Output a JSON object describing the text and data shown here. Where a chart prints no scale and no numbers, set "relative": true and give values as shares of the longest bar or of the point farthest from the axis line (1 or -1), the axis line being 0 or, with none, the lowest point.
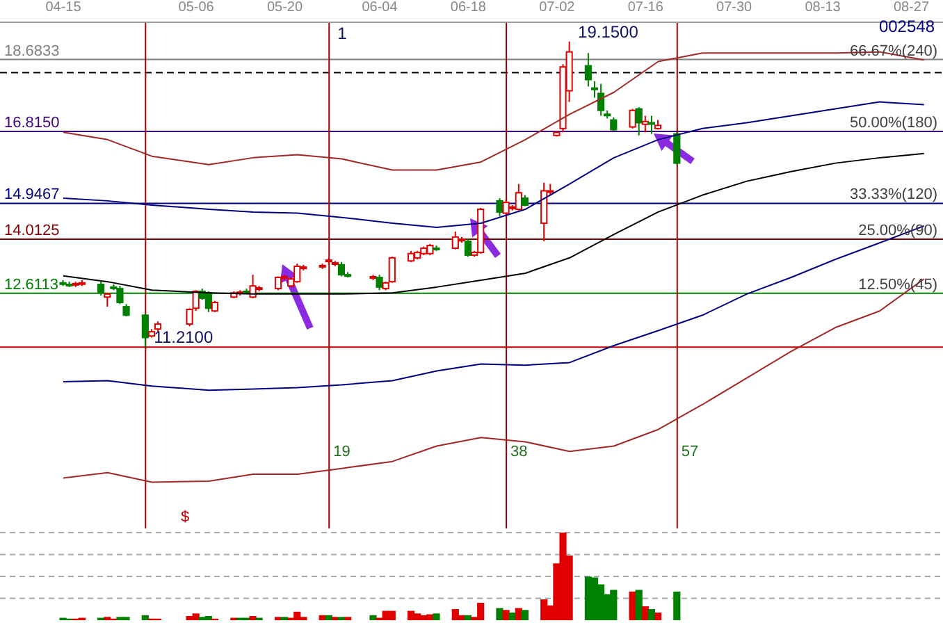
{
  "chart_data": [
    {
      "type": "candlestick",
      "title": "002548",
      "x": [
        "--04-15",
        "--04-16",
        "--04-17",
        "--04-18",
        "--04-21",
        "--04-22",
        "--04-23",
        "--04-24",
        "--04-25",
        "--04-28",
        "--04-29",
        "--04-30",
        "--05-05",
        "--05-06",
        "--05-07",
        "--05-08",
        "--05-09",
        "--05-12",
        "--05-13",
        "--05-14",
        "--05-15",
        "--05-16",
        "--05-19",
        "--05-20",
        "--05-21",
        "--05-22",
        "--05-23",
        "--05-26",
        "--05-27",
        "--05-28",
        "--05-29",
        "--05-30",
        "--06-03",
        "--06-04",
        "--06-05",
        "--06-06",
        "--06-09",
        "--06-10",
        "--06-11",
        "--06-12",
        "--06-13",
        "--06-16",
        "--06-17",
        "--06-18",
        "--06-19",
        "--06-20",
        "--06-23",
        "--06-24",
        "--06-25",
        "--06-26",
        "--06-27",
        "--06-30",
        "--07-01",
        "--07-02",
        "--07-03",
        "--07-04",
        "--07-07",
        "--07-08",
        "--07-09",
        "--07-10",
        "--07-11",
        "--07-14",
        "--07-15",
        "--07-16",
        "--07-17",
        "--07-18",
        "--07-21"
      ],
      "ohlc": [
        [
          12.88,
          12.95,
          12.8,
          12.88
        ],
        [
          12.84,
          12.91,
          12.77,
          12.84
        ],
        [
          12.84,
          12.91,
          12.77,
          12.86
        ],
        [
          12.86,
          12.95,
          12.8,
          12.88
        ],
        [
          12.84,
          12.91,
          12.55,
          12.62
        ],
        [
          12.51,
          12.62,
          12.26,
          12.59
        ],
        [
          12.77,
          12.84,
          12.69,
          12.75
        ],
        [
          12.73,
          12.8,
          12.33,
          12.37
        ],
        [
          12.26,
          12.33,
          12.01,
          12.04
        ],
        [
          12.04,
          12.08,
          11.21,
          11.46
        ],
        [
          11.5,
          11.68,
          11.46,
          11.61
        ],
        [
          11.68,
          11.88,
          11.61,
          11.81
        ],
        [
          11.81,
          12.22,
          11.75,
          12.19
        ],
        [
          12.22,
          12.69,
          12.15,
          12.66
        ],
        [
          12.66,
          12.73,
          12.44,
          12.48
        ],
        [
          12.62,
          12.66,
          12.12,
          12.22
        ],
        [
          12.15,
          12.41,
          12.12,
          12.37
        ],
        [
          12.51,
          12.66,
          12.48,
          12.62
        ],
        [
          12.62,
          12.69,
          12.55,
          12.64
        ],
        [
          12.66,
          12.73,
          12.59,
          12.64
        ],
        [
          12.51,
          13.09,
          12.48,
          12.8
        ],
        [
          12.73,
          12.8,
          12.66,
          12.75
        ],
        [
          12.73,
          13.05,
          12.69,
          13.02
        ],
        [
          13.02,
          13.09,
          12.95,
          13.04
        ],
        [
          12.8,
          13.02,
          12.77,
          12.98
        ],
        [
          12.91,
          13.38,
          12.88,
          13.31
        ],
        [
          13.27,
          13.35,
          13.2,
          13.29
        ],
        [
          13.31,
          13.38,
          13.24,
          13.33
        ],
        [
          13.45,
          13.53,
          13.38,
          13.47
        ],
        [
          13.38,
          13.45,
          13.31,
          13.4
        ],
        [
          13.35,
          13.42,
          13.05,
          13.09
        ],
        [
          13.09,
          13.16,
          13.02,
          13.07
        ],
        [
          13.02,
          13.09,
          12.95,
          13.04
        ],
        [
          13.02,
          13.09,
          12.69,
          12.77
        ],
        [
          12.73,
          12.91,
          12.69,
          12.88
        ],
        [
          12.91,
          13.56,
          12.88,
          13.53
        ],
        [
          13.45,
          13.71,
          13.42,
          13.64
        ],
        [
          13.53,
          13.71,
          13.49,
          13.67
        ],
        [
          13.64,
          13.82,
          13.6,
          13.78
        ],
        [
          13.64,
          13.89,
          13.6,
          13.85
        ],
        [
          13.78,
          13.85,
          13.71,
          13.76
        ],
        [
          13.78,
          14.21,
          13.75,
          14.07
        ],
        [
          13.99,
          14.07,
          13.92,
          14.01
        ],
        [
          13.96,
          14.03,
          13.56,
          13.6
        ],
        [
          13.6,
          13.71,
          13.56,
          13.67
        ],
        [
          13.67,
          14.83,
          13.64,
          14.79
        ],
        [
          15.01,
          15.08,
          14.61,
          14.72
        ],
        [
          14.69,
          15.05,
          14.65,
          14.97
        ],
        [
          14.83,
          14.9,
          14.76,
          14.85
        ],
        [
          14.79,
          15.45,
          14.76,
          15.22
        ],
        [
          15.08,
          15.16,
          14.87,
          14.9
        ],
        [
          14.43,
          15.48,
          13.96,
          15.27
        ],
        [
          15.25,
          15.45,
          15.16,
          15.27
        ],
        [
          16.71,
          16.82,
          16.68,
          16.79
        ],
        [
          16.89,
          18.56,
          16.79,
          18.49
        ],
        [
          17.87,
          19.15,
          17.58,
          18.88
        ],
        [
          18.52,
          18.85,
          17.98,
          18.16
        ],
        [
          17.94,
          18.12,
          17.69,
          17.92
        ],
        [
          17.8,
          18.05,
          17.22,
          17.36
        ],
        [
          17.26,
          17.36,
          17.15,
          17.24
        ],
        [
          17.11,
          17.18,
          16.82,
          16.86
        ],
        [
          16.93,
          17.4,
          16.89,
          17.36
        ],
        [
          17.4,
          17.44,
          16.71,
          17.04
        ],
        [
          17.0,
          17.22,
          16.79,
          17.07
        ],
        [
          17.04,
          17.22,
          16.75,
          17.02
        ],
        [
          16.89,
          17.11,
          16.86,
          16.97
        ],
        [
          16.75,
          16.79,
          15.95,
          15.99
        ]
      ],
      "colors": [
        "#008000",
        "#008000",
        "#e00000",
        "#e00000",
        "#008000",
        "#e00000",
        "#008000",
        "#008000",
        "#008000",
        "#008000",
        "#e00000",
        "#e00000",
        "#e00000",
        "#e00000",
        "#008000",
        "#008000",
        "#e00000",
        "#e00000",
        "#e00000",
        "#008000",
        "#e00000",
        "#e00000",
        "#e00000",
        "#e00000",
        "#e00000",
        "#e00000",
        "#e00000",
        "#e00000",
        "#e00000",
        "#e00000",
        "#008000",
        "#008000",
        "#e00000",
        "#008000",
        "#e00000",
        "#e00000",
        "#e00000",
        "#e00000",
        "#e00000",
        "#e00000",
        "#008000",
        "#e00000",
        "#e00000",
        "#008000",
        "#e00000",
        "#e00000",
        "#008000",
        "#e00000",
        "#e00000",
        "#e00000",
        "#008000",
        "#e00000",
        "#e00000",
        "#e00000",
        "#e00000",
        "#e00000",
        "#008000",
        "#008000",
        "#008000",
        "#008000",
        "#008000",
        "#e00000",
        "#008000",
        "#e00000",
        "#008000",
        "#e00000",
        "#008000"
      ],
      "series": [
        {
          "type": "line",
          "color": "#a02828",
          "x": [
            "--04-15",
            "--04-22",
            "--04-29",
            "--05-08",
            "--05-15",
            "--05-22",
            "--05-29",
            "--06-06",
            "--06-13",
            "--06-20",
            "--06-27",
            "--07-04",
            "--07-11",
            "--07-18",
            "--07-25",
            "--08-01",
            "--08-08",
            "--08-15",
            "--08-22",
            "--08-29"
          ],
          "values": [
            16.79,
            16.6,
            16.17,
            15.95,
            16.13,
            16.21,
            16.1,
            15.81,
            15.81,
            16.02,
            16.6,
            17.26,
            17.83,
            18.63,
            18.85,
            18.85,
            18.85,
            18.85,
            18.88,
            18.67
          ]
        },
        {
          "type": "line",
          "color": "#000080",
          "x": [
            "--04-15",
            "--04-22",
            "--04-29",
            "--05-08",
            "--05-15",
            "--05-22",
            "--05-29",
            "--06-06",
            "--06-13",
            "--06-20",
            "--06-27",
            "--07-04",
            "--07-11",
            "--07-18",
            "--07-25",
            "--08-01",
            "--08-08",
            "--08-15",
            "--08-22",
            "--08-29"
          ],
          "values": [
            15.08,
            15.01,
            14.9,
            14.79,
            14.72,
            14.69,
            14.58,
            14.43,
            14.32,
            14.43,
            14.79,
            15.45,
            16.13,
            16.6,
            16.89,
            17.04,
            17.22,
            17.4,
            17.58,
            17.51
          ]
        },
        {
          "type": "line",
          "color": "#000000",
          "x": [
            "--04-15",
            "--04-22",
            "--04-29",
            "--05-08",
            "--05-15",
            "--05-22",
            "--05-29",
            "--06-06",
            "--06-13",
            "--06-20",
            "--06-27",
            "--07-04",
            "--07-11",
            "--07-18",
            "--07-25",
            "--08-01",
            "--08-08",
            "--08-15",
            "--08-22",
            "--08-29"
          ],
          "values": [
            13.06,
            12.91,
            12.69,
            12.62,
            12.59,
            12.59,
            12.59,
            12.62,
            12.77,
            12.95,
            13.13,
            13.53,
            14.14,
            14.72,
            15.16,
            15.52,
            15.77,
            15.99,
            16.13,
            16.24
          ]
        },
        {
          "type": "line",
          "color": "#000080",
          "x": [
            "--04-15",
            "--04-22",
            "--04-29",
            "--05-08",
            "--05-15",
            "--05-22",
            "--05-29",
            "--06-06",
            "--06-13",
            "--06-20",
            "--06-27",
            "--07-04",
            "--07-11",
            "--07-18",
            "--07-25",
            "--08-01",
            "--08-08",
            "--08-15",
            "--08-22",
            "--08-29"
          ],
          "values": [
            10.31,
            10.34,
            10.2,
            10.09,
            10.12,
            10.16,
            10.23,
            10.34,
            10.59,
            10.77,
            10.74,
            10.81,
            11.25,
            11.64,
            12.04,
            12.59,
            13.02,
            13.49,
            13.92,
            14.36
          ]
        },
        {
          "type": "line",
          "color": "#a02828",
          "x": [
            "--04-15",
            "--04-22",
            "--04-29",
            "--05-08",
            "--05-15",
            "--05-22",
            "--05-29",
            "--06-06",
            "--06-13",
            "--06-20",
            "--06-27",
            "--07-04",
            "--07-11",
            "--07-18",
            "--07-25",
            "--08-01",
            "--08-08",
            "--08-15",
            "--08-22",
            "--08-29"
          ],
          "values": [
            7.81,
            7.95,
            7.7,
            7.73,
            7.91,
            7.91,
            8.06,
            8.24,
            8.64,
            8.86,
            8.75,
            8.5,
            8.64,
            9.07,
            9.72,
            10.41,
            11.1,
            11.72,
            12.15,
            12.98
          ]
        }
      ],
      "xlim": [
        "--04-05",
        "--09-01"
      ],
      "xticks": [
        {
          "value": "--04-15",
          "label": "04-15"
        },
        {
          "value": "--05-06",
          "label": "05-06"
        },
        {
          "value": "--05-20",
          "label": "05-20"
        },
        {
          "value": "--06-04",
          "label": "06-04"
        },
        {
          "value": "--06-18",
          "label": "06-18"
        },
        {
          "value": "--07-02",
          "label": "07-02"
        },
        {
          "value": "--07-16",
          "label": "07-16"
        },
        {
          "value": "--07-30",
          "label": "07-30"
        },
        {
          "value": "--08-13",
          "label": "08-13"
        },
        {
          "value": "--08-27",
          "label": "08-27"
        }
      ],
      "ylim": [
        6.5,
        19.65
      ],
      "tick_labels": "x",
      "ref_lines": [
        {
          "axis": "y",
          "value": 18.6833,
          "label": "18.6833",
          "color": "#808080"
        },
        {
          "axis": "y",
          "value": 18.34,
          "color": "#000000",
          "line_style": "dashed"
        },
        {
          "axis": "y",
          "value": 16.815,
          "label": "16.8150",
          "color": "#400080"
        },
        {
          "axis": "y",
          "value": 14.9467,
          "label": "14.9467",
          "color": "#000080"
        },
        {
          "axis": "y",
          "value": 14.0125,
          "label": "14.0125",
          "color": "#800000"
        },
        {
          "axis": "y",
          "value": 12.6113,
          "label": "12.6113",
          "color": "#008000"
        },
        {
          "axis": "y",
          "value": 11.21,
          "color": "#c00000"
        },
        {
          "axis": "x",
          "value": "--04-28",
          "color": "#a00000"
        },
        {
          "axis": "x",
          "value": "--05-27",
          "label": "19",
          "color": "#a00000"
        },
        {
          "axis": "x",
          "value": "--06-24",
          "label": "38",
          "color": "#a00000"
        },
        {
          "axis": "x",
          "value": "--07-21",
          "label": "57",
          "color": "#a00000"
        }
      ],
      "annotations": [
        {
          "text": "19.1500",
          "x": "--07-04",
          "y": 19.15
        },
        {
          "text": "11.2100",
          "x": "--04-28",
          "y": 11.21
        },
        {
          "text": "1",
          "x": "--05-27",
          "y": 19.1
        },
        "$",
        {
          "text": "66.67%(240)",
          "x": "--09-01",
          "y": 18.6833
        },
        {
          "text": "50.00%(180)",
          "x": "--09-01",
          "y": 16.815
        },
        {
          "text": "33.33%(120)",
          "x": "--09-01",
          "y": 14.9467
        },
        {
          "text": "25.00%(90)",
          "x": "--09-01",
          "y": 14.0125
        },
        {
          "text": "12.50%(45)",
          "x": "--09-01",
          "y": 12.6113
        }
      ]
    },
    {
      "type": "bar",
      "relative": true,
      "grid": true,
      "tick_labels": false,
      "xlim": [
        "--04-05",
        "--09-01"
      ],
      "x": [
        "--04-15",
        "--04-16",
        "--04-17",
        "--04-18",
        "--04-21",
        "--04-22",
        "--04-23",
        "--04-24",
        "--04-25",
        "--04-28",
        "--04-29",
        "--04-30",
        "--05-05",
        "--05-06",
        "--05-07",
        "--05-08",
        "--05-09",
        "--05-12",
        "--05-13",
        "--05-14",
        "--05-15",
        "--05-16",
        "--05-19",
        "--05-20",
        "--05-21",
        "--05-22",
        "--05-23",
        "--05-26",
        "--05-27",
        "--05-28",
        "--05-29",
        "--05-30",
        "--06-03",
        "--06-04",
        "--06-05",
        "--06-06",
        "--06-09",
        "--06-10",
        "--06-11",
        "--06-12",
        "--06-13",
        "--06-16",
        "--06-17",
        "--06-18",
        "--06-19",
        "--06-20",
        "--06-23",
        "--06-24",
        "--06-25",
        "--06-26",
        "--06-27",
        "--06-30",
        "--07-01",
        "--07-02",
        "--07-03",
        "--07-04",
        "--07-07",
        "--07-08",
        "--07-09",
        "--07-10",
        "--07-11",
        "--07-14",
        "--07-15",
        "--07-16",
        "--07-17",
        "--07-18",
        "--07-21"
      ],
      "values": [
        0.02,
        0.01,
        0.01,
        0.02,
        0.02,
        0.03,
        0.01,
        0.03,
        0.03,
        0.05,
        0.01,
        0.01,
        0.04,
        0.07,
        0.03,
        0.04,
        0.01,
        0.02,
        0.02,
        0.02,
        0.04,
        0.02,
        0.03,
        0.03,
        0.02,
        0.09,
        0.03,
        0.05,
        0.05,
        0.03,
        0.03,
        0.03,
        0.05,
        0.02,
        0.1,
        0.1,
        0.1,
        0.07,
        0.05,
        0.06,
        0.07,
        0.12,
        0.05,
        0.05,
        0.03,
        0.19,
        0.13,
        0.11,
        0.08,
        0.13,
        0.11,
        0.23,
        0.16,
        0.64,
        1,
        0.73,
        0.49,
        0.48,
        0.4,
        0.29,
        0.34,
        0.32,
        0.34,
        0.15,
        0.12,
        0.08,
        0.32
      ],
      "colors": [
        "#008000",
        "#008000",
        "#e00000",
        "#e00000",
        "#008000",
        "#e00000",
        "#e00000",
        "#008000",
        "#008000",
        "#008000",
        "#e00000",
        "#e00000",
        "#e00000",
        "#e00000",
        "#008000",
        "#008000",
        "#e00000",
        "#e00000",
        "#008000",
        "#008000",
        "#e00000",
        "#008000",
        "#e00000",
        "#008000",
        "#e00000",
        "#e00000",
        "#e00000",
        "#e00000",
        "#008000",
        "#e00000",
        "#008000",
        "#e00000",
        "#008000",
        "#e00000",
        "#e00000",
        "#e00000",
        "#e00000",
        "#e00000",
        "#e00000",
        "#e00000",
        "#008000",
        "#e00000",
        "#e00000",
        "#008000",
        "#e00000",
        "#e00000",
        "#008000",
        "#e00000",
        "#008000",
        "#e00000",
        "#008000",
        "#e00000",
        "#e00000",
        "#e00000",
        "#e00000",
        "#e00000",
        "#008000",
        "#008000",
        "#008000",
        "#008000",
        "#008000",
        "#e00000",
        "#008000",
        "#e00000",
        "#008000",
        "#e00000",
        "#008000"
      ]
    }
  ]
}
